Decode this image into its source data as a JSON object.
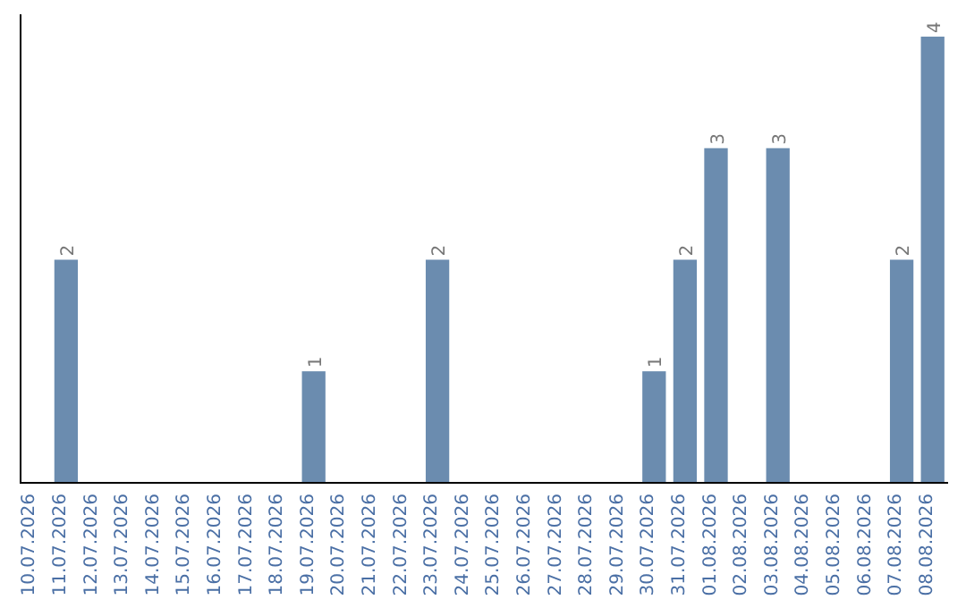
{
  "chart_data": {
    "type": "bar",
    "categories": [
      "10.07.2026",
      "11.07.2026",
      "12.07.2026",
      "13.07.2026",
      "14.07.2026",
      "15.07.2026",
      "16.07.2026",
      "17.07.2026",
      "18.07.2026",
      "19.07.2026",
      "20.07.2026",
      "21.07.2026",
      "22.07.2026",
      "23.07.2026",
      "24.07.2026",
      "25.07.2026",
      "26.07.2026",
      "27.07.2026",
      "28.07.2026",
      "29.07.2026",
      "30.07.2026",
      "31.07.2026",
      "01.08.2026",
      "02.08.2026",
      "03.08.2026",
      "04.08.2026",
      "05.08.2026",
      "06.08.2026",
      "07.08.2026",
      "08.08.2026"
    ],
    "values": [
      0,
      2,
      0,
      0,
      0,
      0,
      0,
      0,
      0,
      1,
      0,
      0,
      0,
      2,
      0,
      0,
      0,
      0,
      0,
      0,
      1,
      2,
      3,
      0,
      3,
      0,
      0,
      0,
      2,
      4
    ],
    "value_labels": [
      null,
      "2",
      null,
      null,
      null,
      null,
      null,
      null,
      null,
      "1",
      null,
      null,
      null,
      "2",
      null,
      null,
      null,
      null,
      null,
      null,
      "1",
      "2",
      "3",
      null,
      "3",
      null,
      null,
      null,
      "2",
      "4"
    ],
    "color": "#6b8caf"
  }
}
